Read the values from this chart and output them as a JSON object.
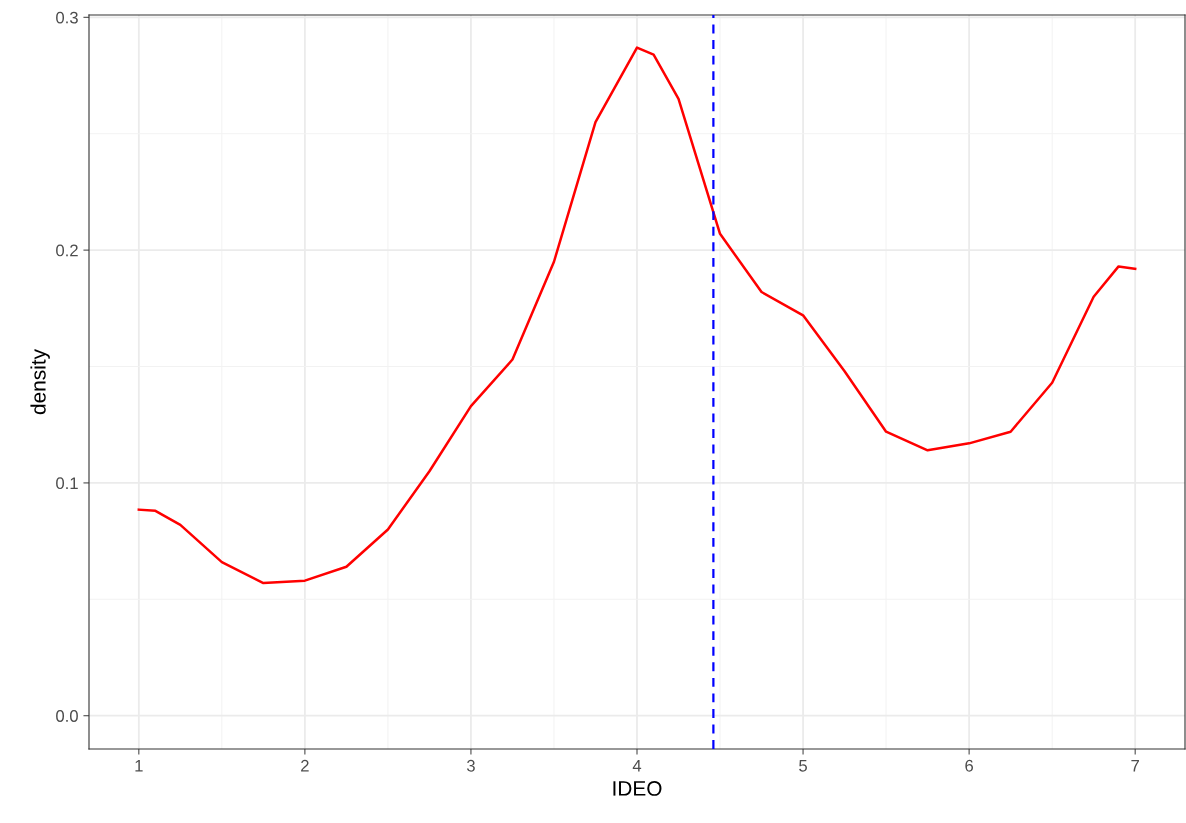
{
  "chart_data": {
    "type": "line",
    "xlabel": "IDEO",
    "ylabel": "density",
    "x": [
      1.0,
      1.1,
      1.25,
      1.5,
      1.75,
      2.0,
      2.25,
      2.5,
      2.75,
      3.0,
      3.25,
      3.5,
      3.75,
      4.0,
      4.1,
      4.25,
      4.5,
      4.75,
      5.0,
      5.25,
      5.5,
      5.75,
      6.0,
      6.25,
      6.5,
      6.75,
      6.9,
      7.0
    ],
    "series": [
      {
        "color": "#ff0000",
        "values": [
          0.0885,
          0.088,
          0.082,
          0.066,
          0.057,
          0.058,
          0.064,
          0.08,
          0.105,
          0.133,
          0.153,
          0.195,
          0.255,
          0.287,
          0.284,
          0.265,
          0.207,
          0.182,
          0.172,
          0.148,
          0.122,
          0.114,
          0.117,
          0.122,
          0.143,
          0.18,
          0.193,
          0.192
        ]
      }
    ],
    "xlim": [
      0.7,
      7.3
    ],
    "ylim": [
      -0.0143,
      0.301
    ],
    "xticks": [
      1,
      2,
      3,
      4,
      5,
      6,
      7
    ],
    "yticks": [
      {
        "value": 0,
        "label": "0.0"
      },
      {
        "value": 0.1,
        "label": "0.1"
      },
      {
        "value": 0.2,
        "label": "0.2"
      },
      {
        "value": 0.3,
        "label": "0.3"
      }
    ],
    "ref_lines": [
      {
        "axis": "x",
        "value": 4.46,
        "color": "#0000ff",
        "line_style": "dashed"
      }
    ],
    "grid": true,
    "marker": "none",
    "line_style": "solid"
  }
}
